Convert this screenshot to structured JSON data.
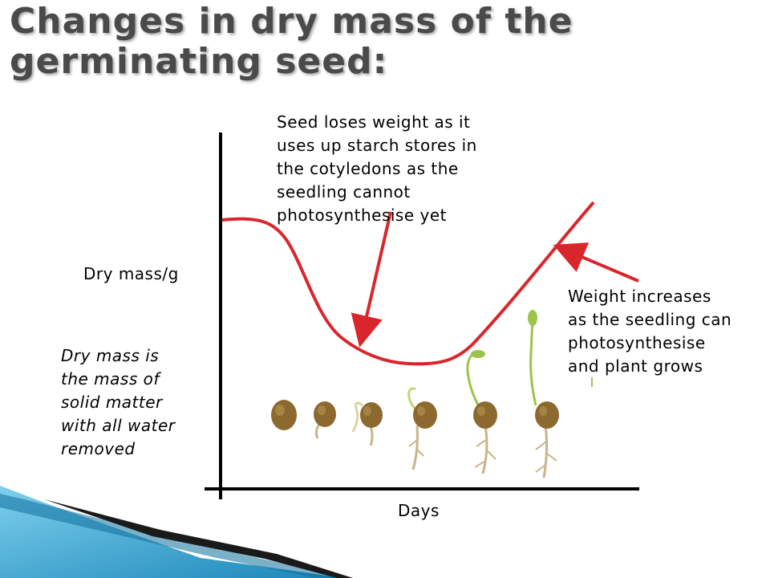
{
  "title_line1": "Changes in dry mass of the",
  "title_line2": "germinating seed:",
  "y_axis_label": "Dry mass/g",
  "x_axis_label": "Days",
  "definition_lines": [
    "Dry mass is",
    "the mass of",
    "solid matter",
    "with all water",
    "removed"
  ],
  "annotation_loss_lines": [
    "Seed loses weight as it",
    "uses up starch stores in",
    "the cotyledons as the",
    "seedling cannot",
    "photosynthesise yet"
  ],
  "annotation_gain_lines": [
    "Weight increases",
    "as the seedling can",
    "photosynthesise",
    "and plant grows"
  ],
  "stages": [
    "seed",
    "seed-with-radicle",
    "seedling-small-shoot",
    "seedling-shoot",
    "seedling-leaves",
    "seedling-tall",
    "seedling-tallest"
  ],
  "colors": {
    "curve": "#d9262c",
    "arrow": "#d9262c",
    "axis": "#000000",
    "seed": "#8c6a2f",
    "shoot": "#9cc44a",
    "root": "#c9b48a",
    "accent_blue": "#1f8fc0"
  }
}
